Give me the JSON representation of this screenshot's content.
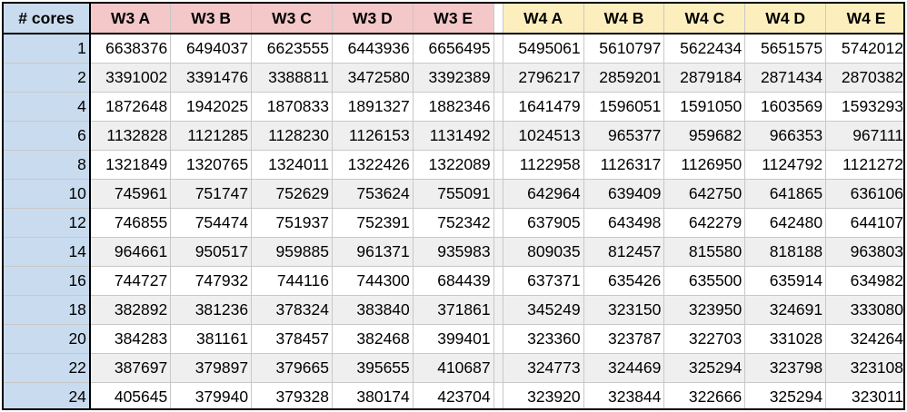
{
  "header": {
    "corner_label": "# cores",
    "w3": [
      "W3 A",
      "W3 B",
      "W3 C",
      "W3 D",
      "W3 E"
    ],
    "w4": [
      "W4 A",
      "W4 B",
      "W4 C",
      "W4 D",
      "W4 E"
    ]
  },
  "colors": {
    "core_column": "#c9dbee",
    "w3_header": "#f4c7c8",
    "w4_header": "#fdefbd",
    "row_band": "#efefef",
    "grid_line": "#c8c8c8",
    "border": "#000000"
  },
  "rows": [
    {
      "cores": "1",
      "w3": [
        "6638376",
        "6494037",
        "6623555",
        "6443936",
        "6656495"
      ],
      "w4": [
        "5495061",
        "5610797",
        "5622434",
        "5651575",
        "5742012"
      ]
    },
    {
      "cores": "2",
      "w3": [
        "3391002",
        "3391476",
        "3388811",
        "3472580",
        "3392389"
      ],
      "w4": [
        "2796217",
        "2859201",
        "2879184",
        "2871434",
        "2870382"
      ]
    },
    {
      "cores": "4",
      "w3": [
        "1872648",
        "1942025",
        "1870833",
        "1891327",
        "1882346"
      ],
      "w4": [
        "1641479",
        "1596051",
        "1591050",
        "1603569",
        "1593293"
      ]
    },
    {
      "cores": "6",
      "w3": [
        "1132828",
        "1121285",
        "1128230",
        "1126153",
        "1131492"
      ],
      "w4": [
        "1024513",
        "965377",
        "959682",
        "966353",
        "967111"
      ]
    },
    {
      "cores": "8",
      "w3": [
        "1321849",
        "1320765",
        "1324011",
        "1322426",
        "1322089"
      ],
      "w4": [
        "1122958",
        "1126317",
        "1126950",
        "1124792",
        "1121272"
      ]
    },
    {
      "cores": "10",
      "w3": [
        "745961",
        "751747",
        "752629",
        "753624",
        "755091"
      ],
      "w4": [
        "642964",
        "639409",
        "642750",
        "641865",
        "636106"
      ]
    },
    {
      "cores": "12",
      "w3": [
        "746855",
        "754474",
        "751937",
        "752391",
        "752342"
      ],
      "w4": [
        "637905",
        "643498",
        "642279",
        "642480",
        "644107"
      ]
    },
    {
      "cores": "14",
      "w3": [
        "964661",
        "950517",
        "959885",
        "961371",
        "935983"
      ],
      "w4": [
        "809035",
        "812457",
        "815580",
        "818188",
        "963803"
      ]
    },
    {
      "cores": "16",
      "w3": [
        "744727",
        "747932",
        "744116",
        "744300",
        "684439"
      ],
      "w4": [
        "637371",
        "635426",
        "635500",
        "635914",
        "634982"
      ]
    },
    {
      "cores": "18",
      "w3": [
        "382892",
        "381236",
        "378324",
        "383840",
        "371861"
      ],
      "w4": [
        "345249",
        "323150",
        "323950",
        "324691",
        "333080"
      ]
    },
    {
      "cores": "20",
      "w3": [
        "384283",
        "381161",
        "378457",
        "382468",
        "399401"
      ],
      "w4": [
        "323360",
        "323787",
        "322703",
        "331028",
        "324264"
      ]
    },
    {
      "cores": "22",
      "w3": [
        "387697",
        "379897",
        "379665",
        "395655",
        "410687"
      ],
      "w4": [
        "324773",
        "324469",
        "325294",
        "323798",
        "323108"
      ]
    },
    {
      "cores": "24",
      "w3": [
        "405645",
        "379940",
        "379328",
        "380174",
        "423704"
      ],
      "w4": [
        "323920",
        "323844",
        "322666",
        "325294",
        "323011"
      ]
    }
  ]
}
